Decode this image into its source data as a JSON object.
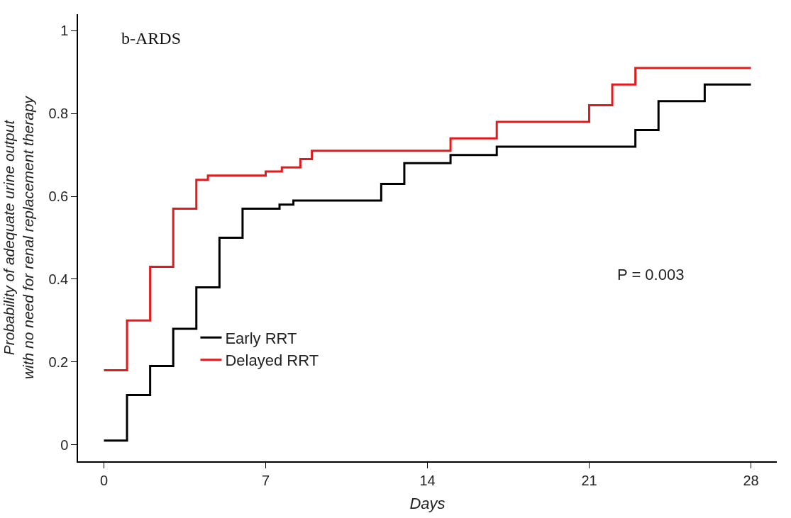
{
  "chart_data": {
    "type": "step",
    "xlabel": "Days",
    "ylabel": "Probability of adequate urine output\nwith no need for renal replacement therapy",
    "annotations": [
      "b-ARDS",
      "P = 0.003"
    ],
    "xlim": [
      -1.12,
      29.12
    ],
    "ylim": [
      -0.04,
      1.04
    ],
    "xticks": [
      0,
      7,
      14,
      21,
      28
    ],
    "yticks": [
      0,
      0.2,
      0.4,
      0.6,
      0.8,
      1
    ],
    "legend": "bottom left",
    "line_style": "solid",
    "marker": "none",
    "series": [
      {
        "name": "Early RRT",
        "color": "#000000",
        "x": [
          0,
          1,
          2,
          3,
          4,
          5,
          6,
          7.6,
          8.2,
          12,
          13,
          15,
          17,
          23,
          24,
          26,
          28
        ],
        "values": [
          0.01,
          0.12,
          0.19,
          0.28,
          0.38,
          0.5,
          0.57,
          0.58,
          0.59,
          0.63,
          0.68,
          0.7,
          0.72,
          0.76,
          0.83,
          0.87,
          0.87
        ]
      },
      {
        "name": "Delayed RRT",
        "color": "#e31a1c",
        "x": [
          0,
          1,
          2,
          3,
          4,
          4.5,
          7,
          7.7,
          8.5,
          9,
          15,
          17,
          21,
          22,
          23,
          28
        ],
        "values": [
          0.18,
          0.3,
          0.43,
          0.57,
          0.64,
          0.65,
          0.66,
          0.67,
          0.69,
          0.71,
          0.74,
          0.78,
          0.82,
          0.87,
          0.91,
          0.91
        ]
      }
    ]
  }
}
